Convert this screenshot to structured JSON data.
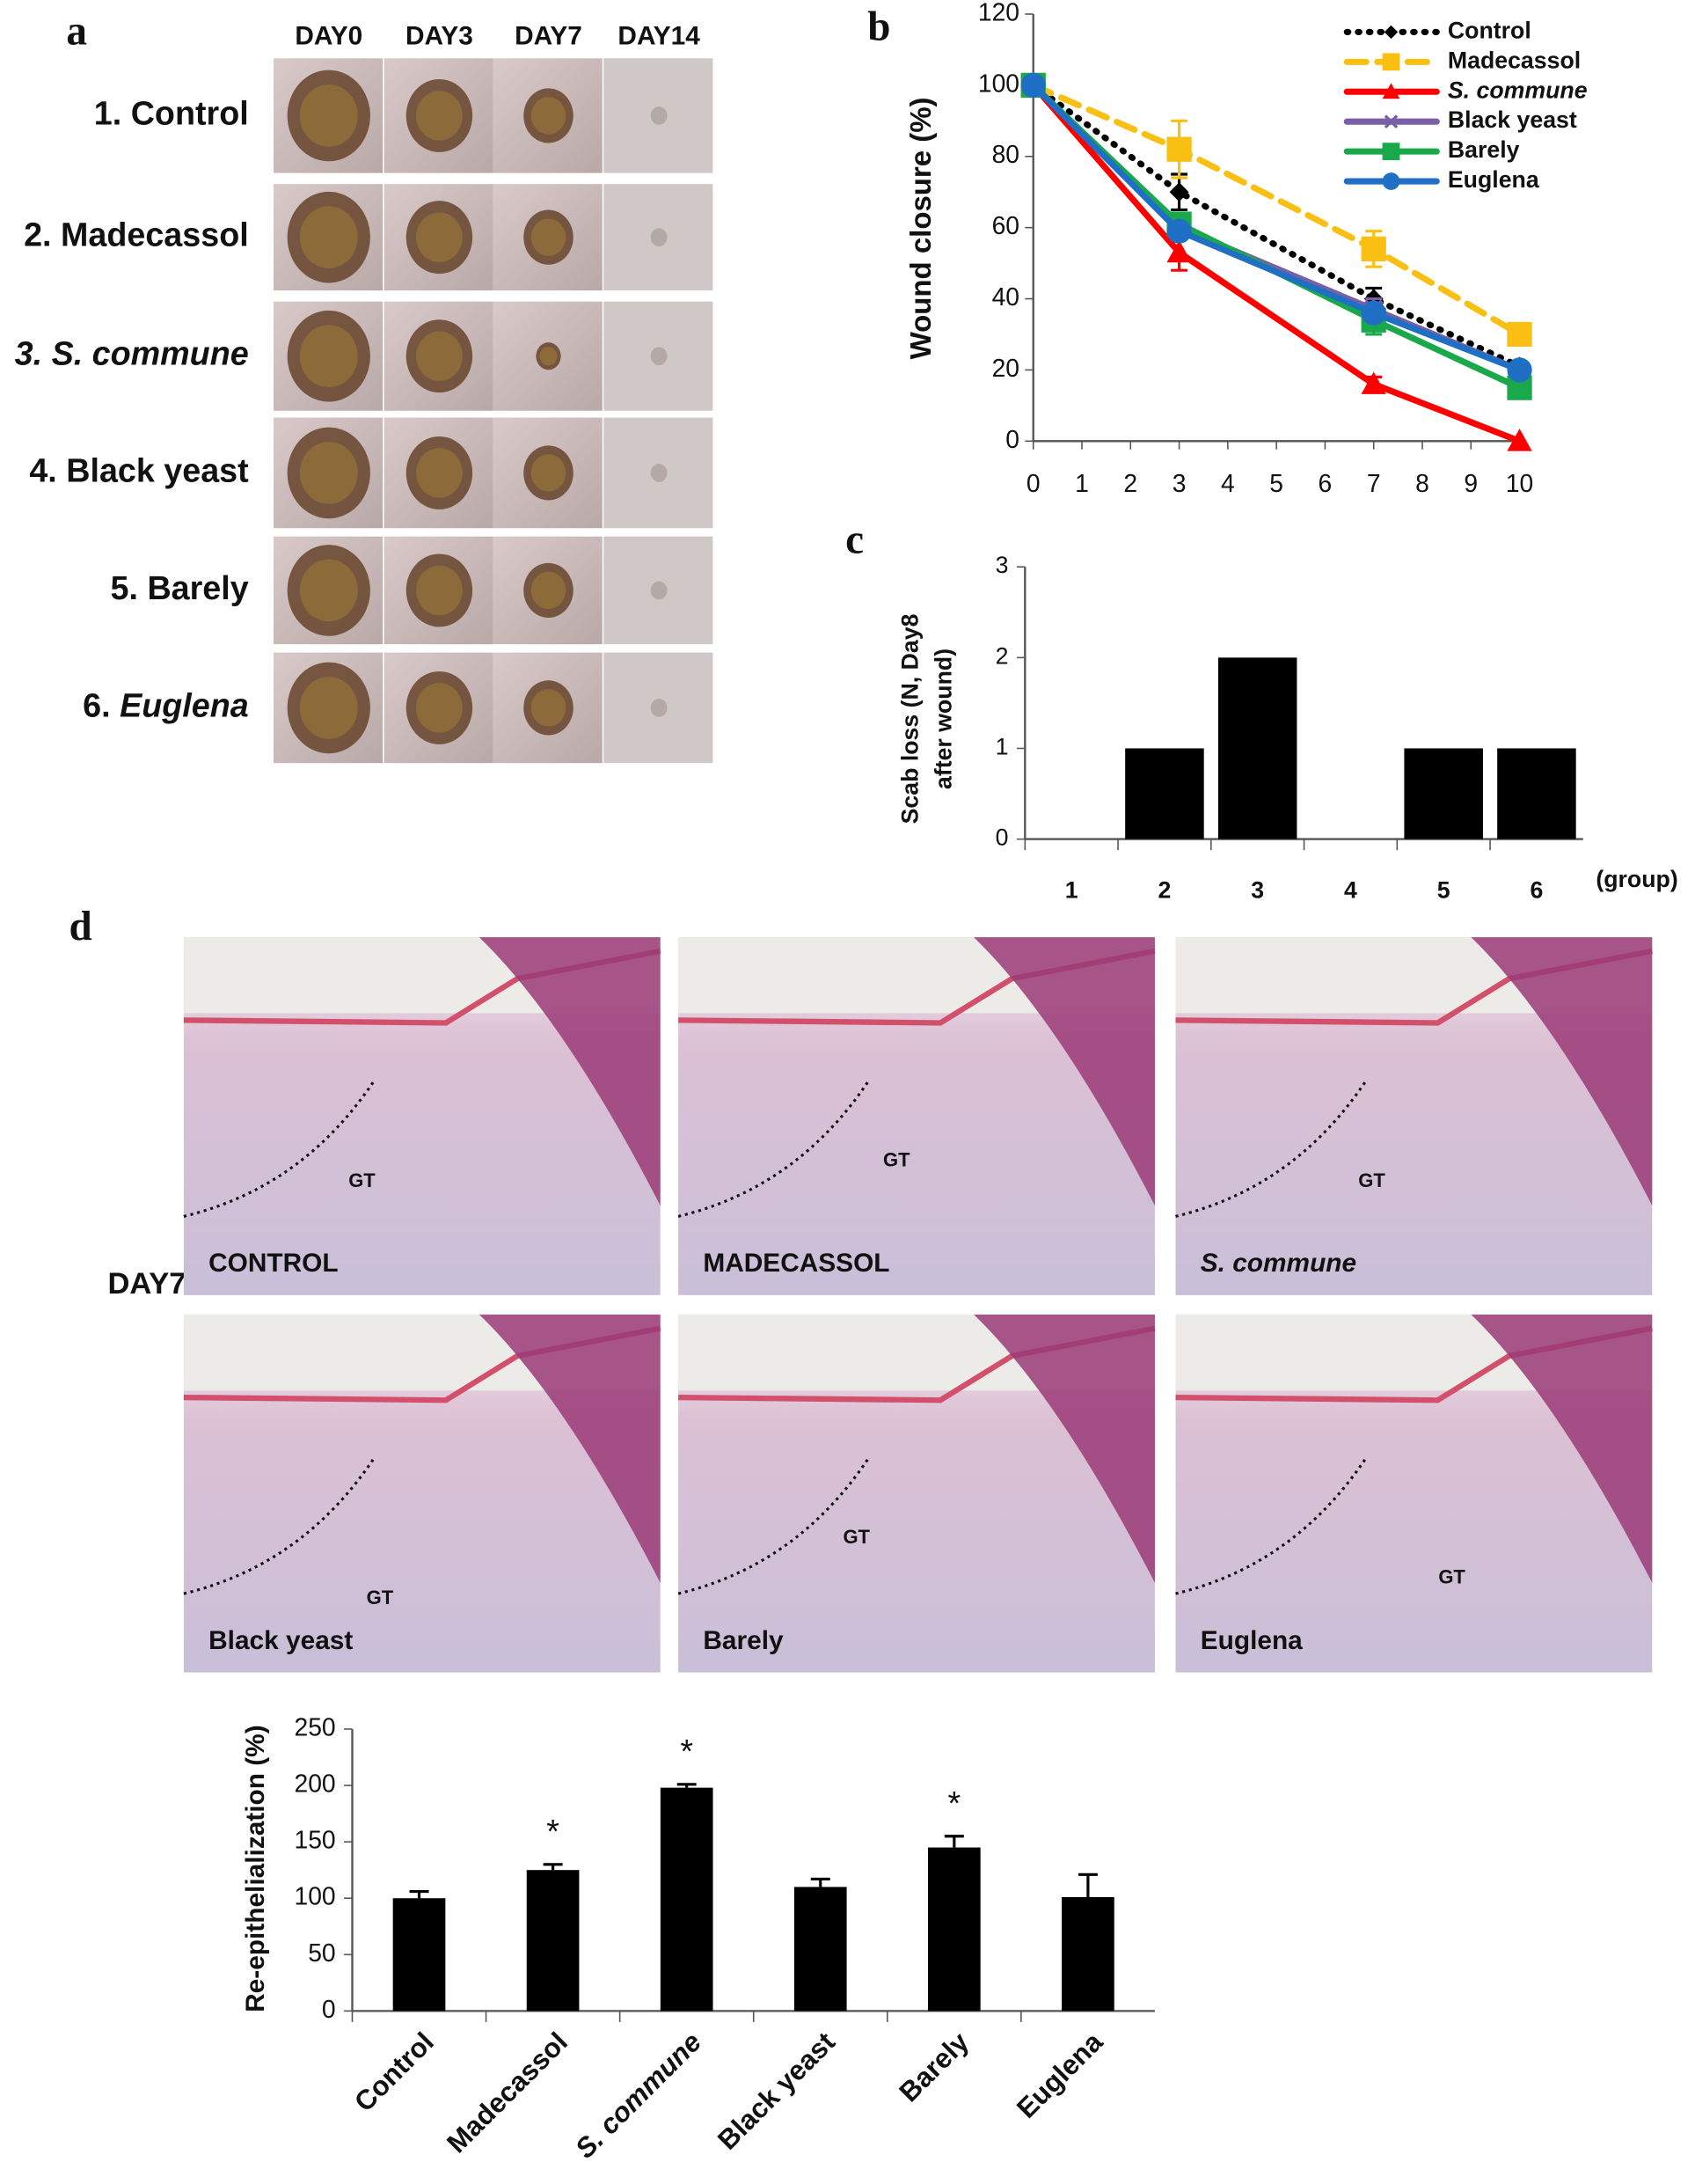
{
  "panel_labels": {
    "a": "a",
    "b": "b",
    "c": "c",
    "d": "d"
  },
  "panel_a": {
    "columns": [
      "DAY0",
      "DAY3",
      "DAY7",
      "DAY14"
    ],
    "rows": [
      {
        "number": "1.",
        "name": "Control",
        "italic": "none"
      },
      {
        "number": "2.",
        "name": "Madecassol",
        "italic": "none"
      },
      {
        "number": "3.",
        "name": "S. commune",
        "italic": "all"
      },
      {
        "number": "4.",
        "name": "Black yeast",
        "italic": "none"
      },
      {
        "number": "5.",
        "name": "Barely",
        "italic": "none"
      },
      {
        "number": "6.",
        "name": "Euglena",
        "italic": "name"
      }
    ]
  },
  "panel_d": {
    "day": "DAY7",
    "tissue_label": "GT",
    "images": [
      {
        "caption": "CONTROL",
        "italic": false
      },
      {
        "caption": "MADECASSOL",
        "italic": false
      },
      {
        "caption": "S. commune",
        "italic": true
      },
      {
        "caption": "Black yeast",
        "italic": false
      },
      {
        "caption": "Barely",
        "italic": false
      },
      {
        "caption": "Euglena",
        "italic": false
      }
    ]
  },
  "chart_data": [
    {
      "type": "line",
      "y_label": "Wound closure (%)",
      "x": [
        0,
        3,
        7,
        10
      ],
      "xlim": [
        0,
        10
      ],
      "xticks": [
        0,
        1,
        2,
        3,
        4,
        5,
        6,
        7,
        8,
        9,
        10
      ],
      "ylim": [
        0,
        120
      ],
      "yticks": [
        0,
        20,
        40,
        60,
        80,
        100,
        120
      ],
      "legend": "upper right",
      "series": [
        {
          "name": "Control",
          "color": "#000000",
          "dash": "dotted",
          "marker": "diamond",
          "italic": false,
          "values": [
            100,
            70,
            40,
            21
          ],
          "errors": [
            0,
            5,
            3,
            0
          ]
        },
        {
          "name": "Madecassol",
          "color": "#f9c013",
          "dash": "dashed",
          "marker": "square",
          "italic": false,
          "values": [
            100,
            82,
            54,
            30
          ],
          "errors": [
            0,
            8,
            5,
            2
          ]
        },
        {
          "name": "S. commune",
          "color": "#ff0000",
          "dash": "solid",
          "marker": "triangle",
          "italic": true,
          "values": [
            100,
            53,
            16,
            0
          ],
          "errors": [
            0,
            5,
            2,
            0
          ]
        },
        {
          "name": "Black yeast",
          "color": "#7b5fa6",
          "dash": "solid",
          "marker": "x",
          "italic": false,
          "values": [
            100,
            60,
            37,
            20
          ],
          "errors": [
            0,
            0,
            3,
            0
          ]
        },
        {
          "name": "Barely",
          "color": "#19a84a",
          "dash": "solid",
          "marker": "square",
          "italic": false,
          "values": [
            100,
            61,
            34,
            15
          ],
          "errors": [
            0,
            0,
            4,
            0
          ]
        },
        {
          "name": "Euglena",
          "color": "#1f6fc4",
          "dash": "solid",
          "marker": "circle",
          "italic": false,
          "values": [
            100,
            59,
            36,
            20
          ],
          "errors": [
            0,
            0,
            0,
            0
          ]
        }
      ]
    },
    {
      "type": "bar",
      "y_label": [
        "Scab loss (N, Day8",
        "after wound)"
      ],
      "x_note": "(group)",
      "categories": [
        "1",
        "2",
        "3",
        "4",
        "5",
        "6"
      ],
      "values": [
        0,
        1,
        2,
        0,
        1,
        1
      ],
      "color": "#000000",
      "ylim": [
        0,
        3
      ],
      "yticks": [
        0,
        1,
        2,
        3
      ]
    },
    {
      "type": "bar",
      "y_label": "Re-epithelialization (%)",
      "categories": [
        "Control",
        "Madecassol",
        "S. commune",
        "Black yeast",
        "Barely",
        "Euglena"
      ],
      "category_italic": [
        false,
        false,
        true,
        false,
        false,
        false
      ],
      "values": [
        100,
        125,
        198,
        110,
        145,
        101
      ],
      "errors": [
        6,
        5,
        3,
        7,
        10,
        20
      ],
      "color": "#000000",
      "ylim": [
        0,
        250
      ],
      "yticks": [
        0,
        50,
        100,
        150,
        200,
        250
      ],
      "annotations": [
        {
          "x": "Madecassol",
          "text": "*"
        },
        {
          "x": "S. commune",
          "text": "*"
        },
        {
          "x": "Barely",
          "text": "*"
        }
      ]
    }
  ]
}
